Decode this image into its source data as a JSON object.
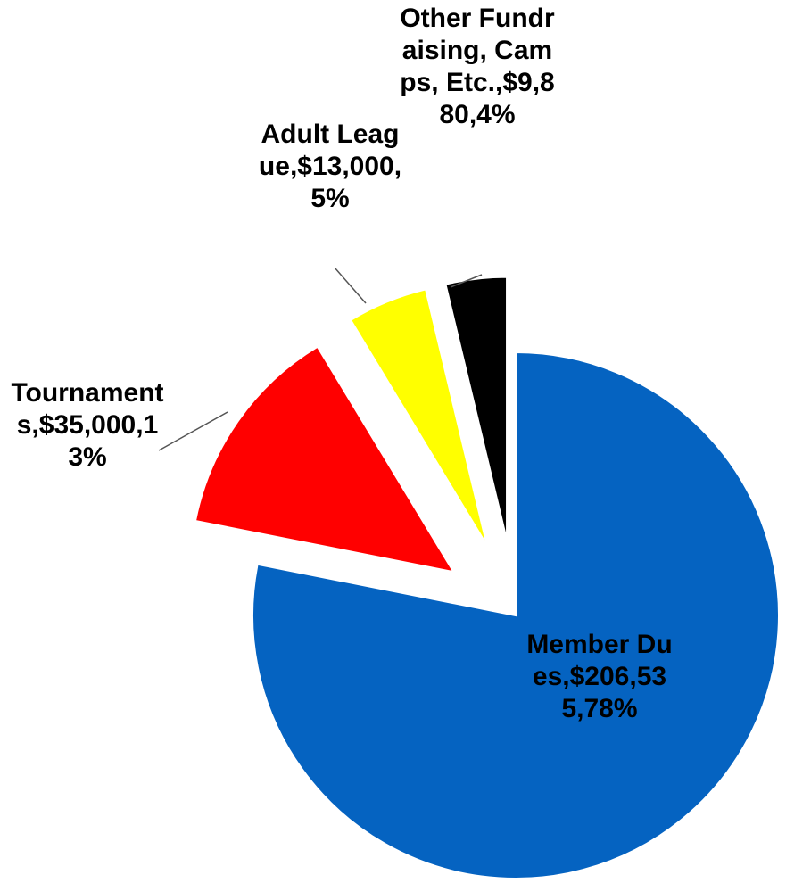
{
  "chart_data": {
    "type": "pie",
    "categories": [
      "Member Dues",
      "Tournaments",
      "Adult League",
      "Other Fundraising, Camps, Etc."
    ],
    "values": [
      206535,
      35000,
      13000,
      9880
    ],
    "value_labels": [
      "$206,535",
      "$35,000",
      "$13,000",
      "$9,880"
    ],
    "percentages": [
      78,
      13,
      5,
      4
    ],
    "percentage_labels": [
      "78%",
      "13%",
      "5%",
      "4%"
    ],
    "label_separator": ",",
    "colors": [
      "#0563c1",
      "#ff0000",
      "#ffff00",
      "#000000"
    ]
  }
}
